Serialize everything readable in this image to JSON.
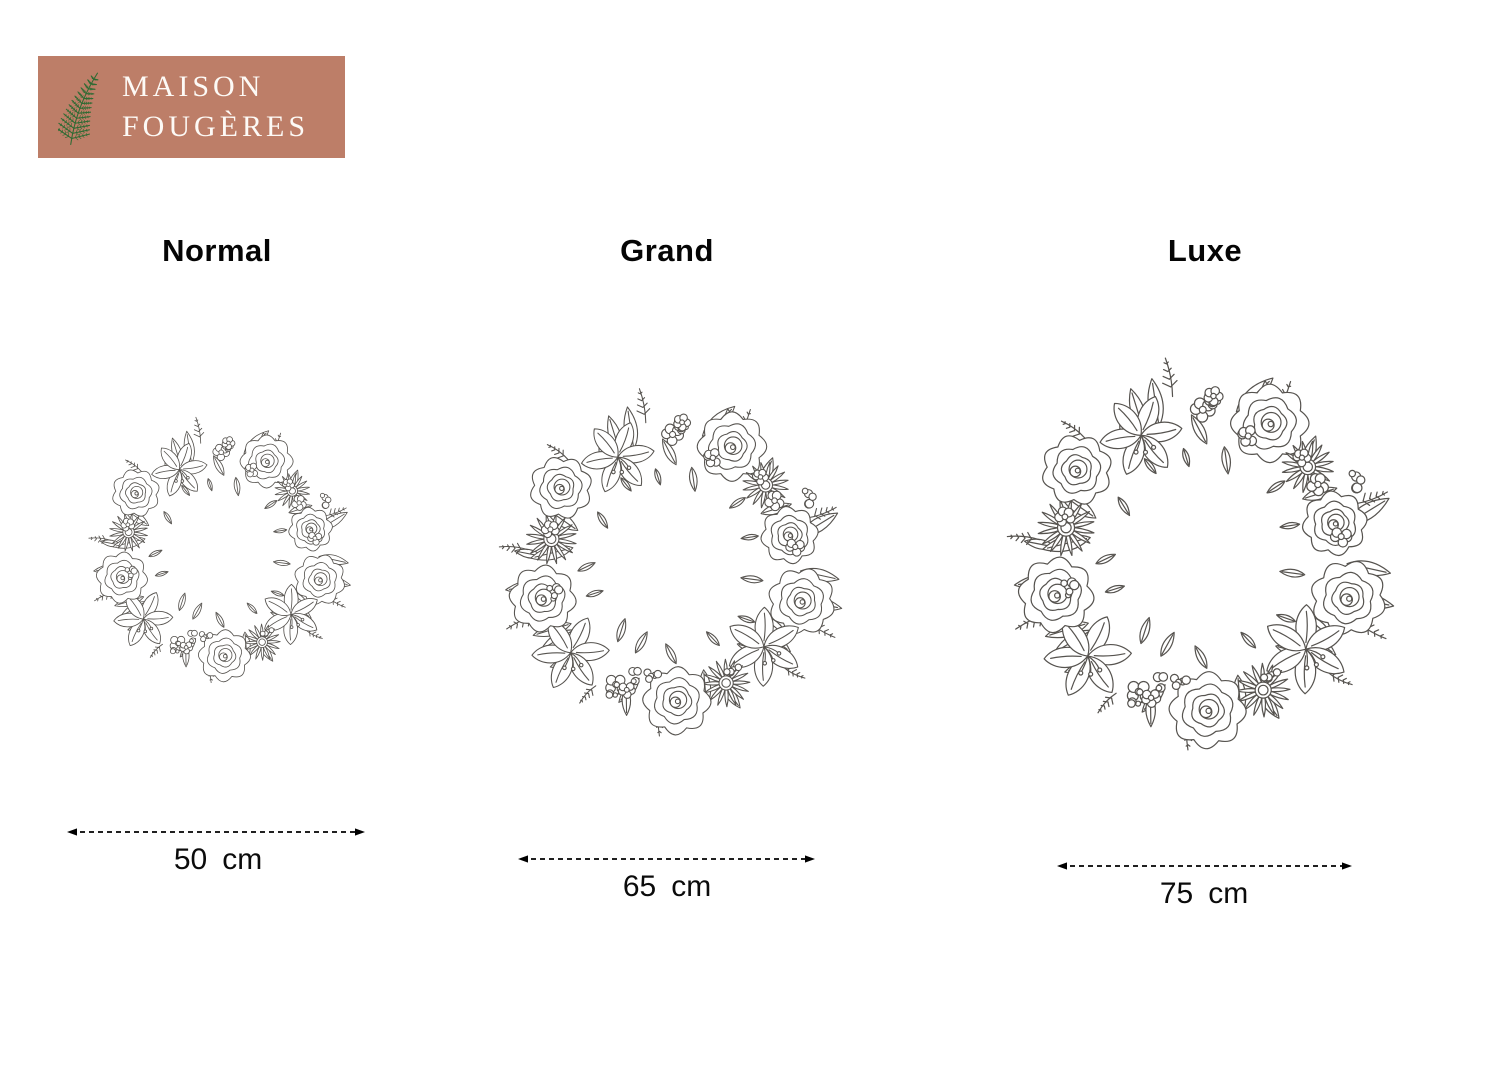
{
  "logo": {
    "line1": "MAISON",
    "line2": "FOUGÈRES",
    "icon": "fern-icon",
    "bg_color": "#bd7e68",
    "text_color": "#fdfaf6",
    "fern_color": "#2e6b33"
  },
  "sizes": [
    {
      "id": "normal",
      "label": "Normal",
      "dimension": {
        "value": "50",
        "unit": "cm"
      }
    },
    {
      "id": "grand",
      "label": "Grand",
      "dimension": {
        "value": "65",
        "unit": "cm"
      }
    },
    {
      "id": "luxe",
      "label": "Luxe",
      "dimension": {
        "value": "75",
        "unit": "cm"
      }
    }
  ],
  "illustration": {
    "description": "black line-art floral wreath of roses, lilies, daisies, berries and leaves",
    "stroke_color": "#56534f"
  }
}
